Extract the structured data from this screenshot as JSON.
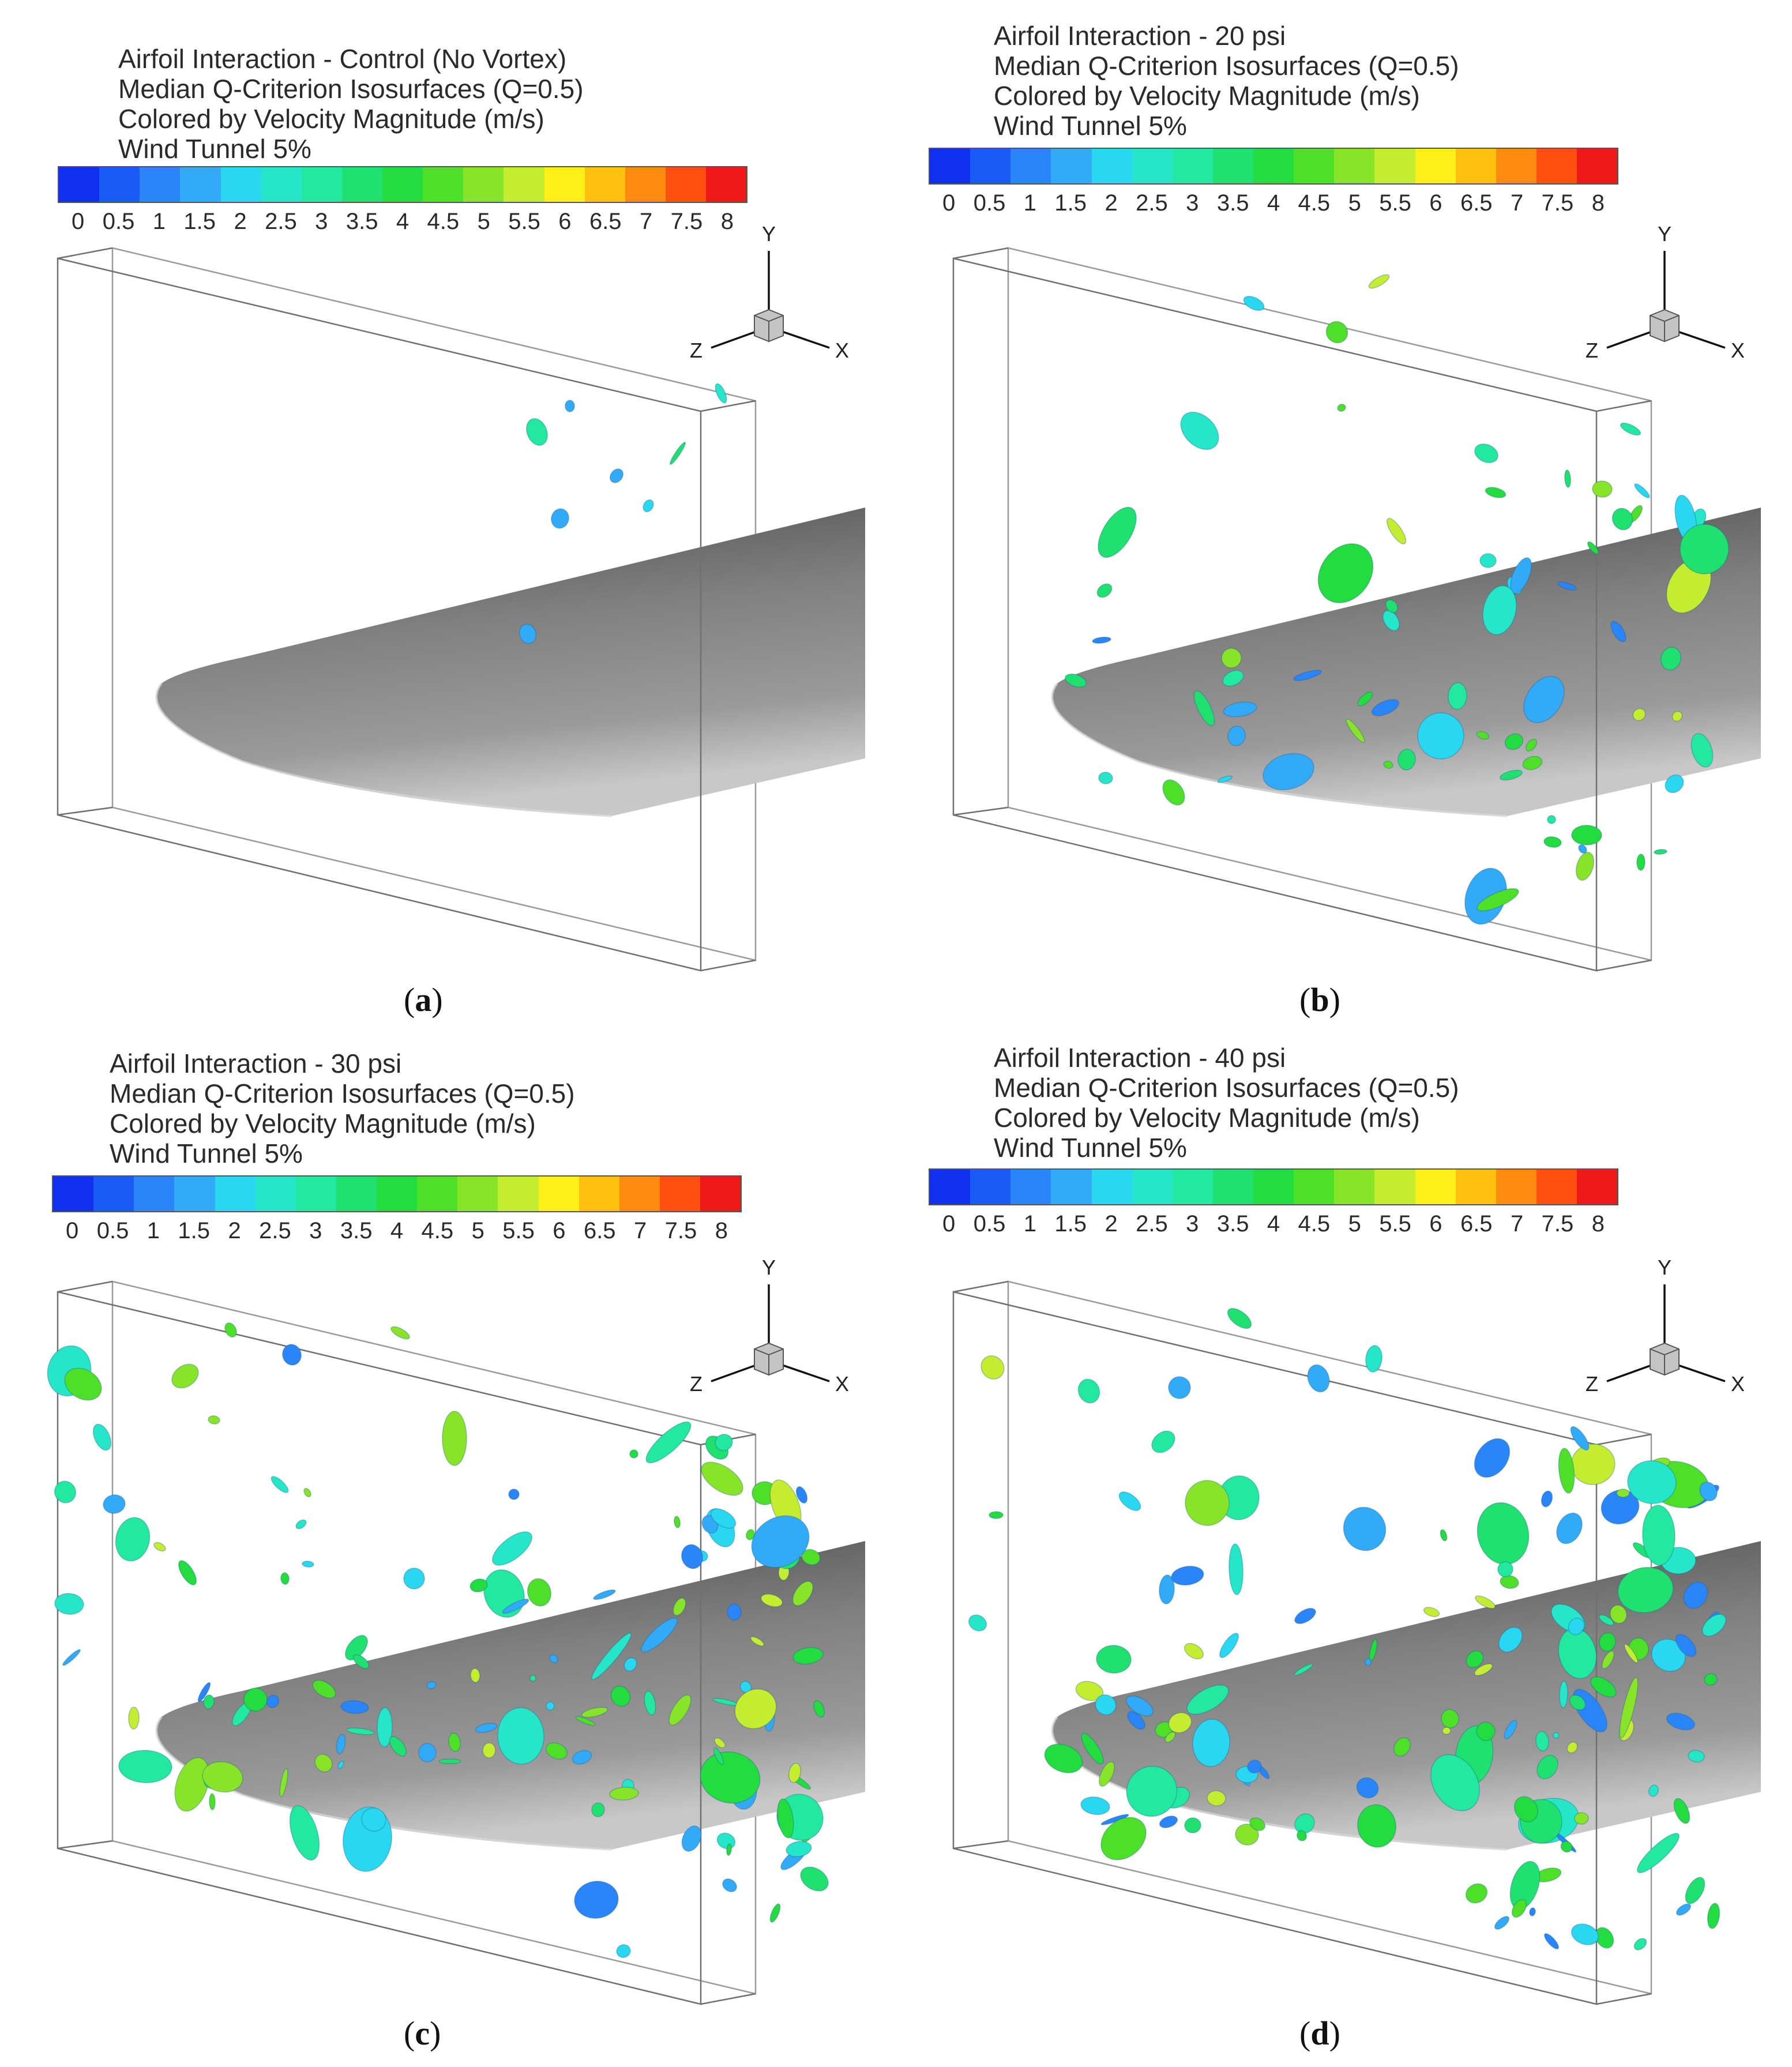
{
  "colorbar": {
    "ticks": [
      "0",
      "0.5",
      "1",
      "1.5",
      "2",
      "2.5",
      "3",
      "3.5",
      "4",
      "4.5",
      "5",
      "5.5",
      "6",
      "6.5",
      "7",
      "7.5",
      "8"
    ],
    "colors": [
      "#1030f0",
      "#1a5af5",
      "#2a86f8",
      "#33aaf8",
      "#2ad7f0",
      "#25e6c8",
      "#22e8a0",
      "#20e070",
      "#22dc40",
      "#4ee028",
      "#88e428",
      "#c4ec30",
      "#ffef18",
      "#ffc010",
      "#ff8a10",
      "#ff5010",
      "#f01818"
    ]
  },
  "axes": {
    "x": "X",
    "y": "Y",
    "z": "Z"
  },
  "panels": [
    {
      "label": "a",
      "title": [
        "Airfoil Interaction - Control (No Vortex)",
        "Median Q-Criterion Isosurfaces (Q=0.5)",
        "Colored by Velocity Magnitude (m/s)",
        "Wind Tunnel 5%"
      ]
    },
    {
      "label": "b",
      "title": [
        "Airfoil Interaction - 20 psi",
        "Median Q-Criterion Isosurfaces (Q=0.5)",
        "Colored by Velocity Magnitude (m/s)",
        "Wind Tunnel 5%"
      ]
    },
    {
      "label": "c",
      "title": [
        "Airfoil Interaction - 30 psi",
        "Median Q-Criterion Isosurfaces (Q=0.5)",
        "Colored by Velocity Magnitude (m/s)",
        "Wind Tunnel 5%"
      ]
    },
    {
      "label": "d",
      "title": [
        "Airfoil Interaction - 40 psi",
        "Median Q-Criterion Isosurfaces (Q=0.5)",
        "Colored by Velocity Magnitude (m/s)",
        "Wind Tunnel 5%"
      ]
    }
  ]
}
